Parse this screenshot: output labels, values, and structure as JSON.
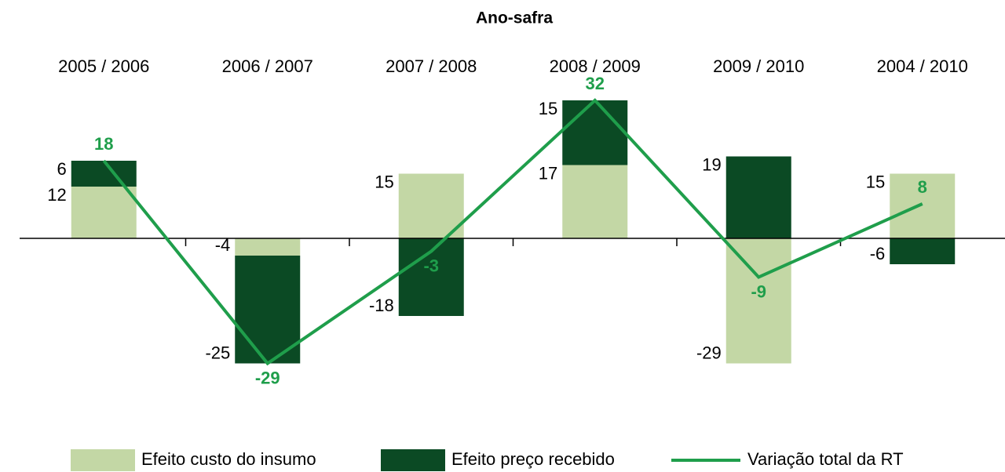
{
  "chart_data": {
    "type": "bar_line",
    "title": "Ano-safra",
    "categories": [
      "2005 / 2006",
      "2006 / 2007",
      "2007 / 2008",
      "2008 / 2009",
      "2009 / 2010",
      "2004 / 2010"
    ],
    "series": [
      {
        "name": "Efeito custo do insumo",
        "color": "#c3d7a5",
        "type": "bar",
        "values": [
          12,
          -4,
          15,
          17,
          -29,
          15
        ]
      },
      {
        "name": "Efeito preço recebido",
        "color": "#0b4a24",
        "type": "bar",
        "values": [
          6,
          -25,
          -18,
          15,
          19,
          -6
        ]
      },
      {
        "name": "Variação total da RT",
        "color": "#1f9e4b",
        "type": "line",
        "values": [
          18,
          -29,
          -3,
          32,
          -9,
          8
        ]
      }
    ],
    "ylim": [
      -35,
      35
    ]
  }
}
